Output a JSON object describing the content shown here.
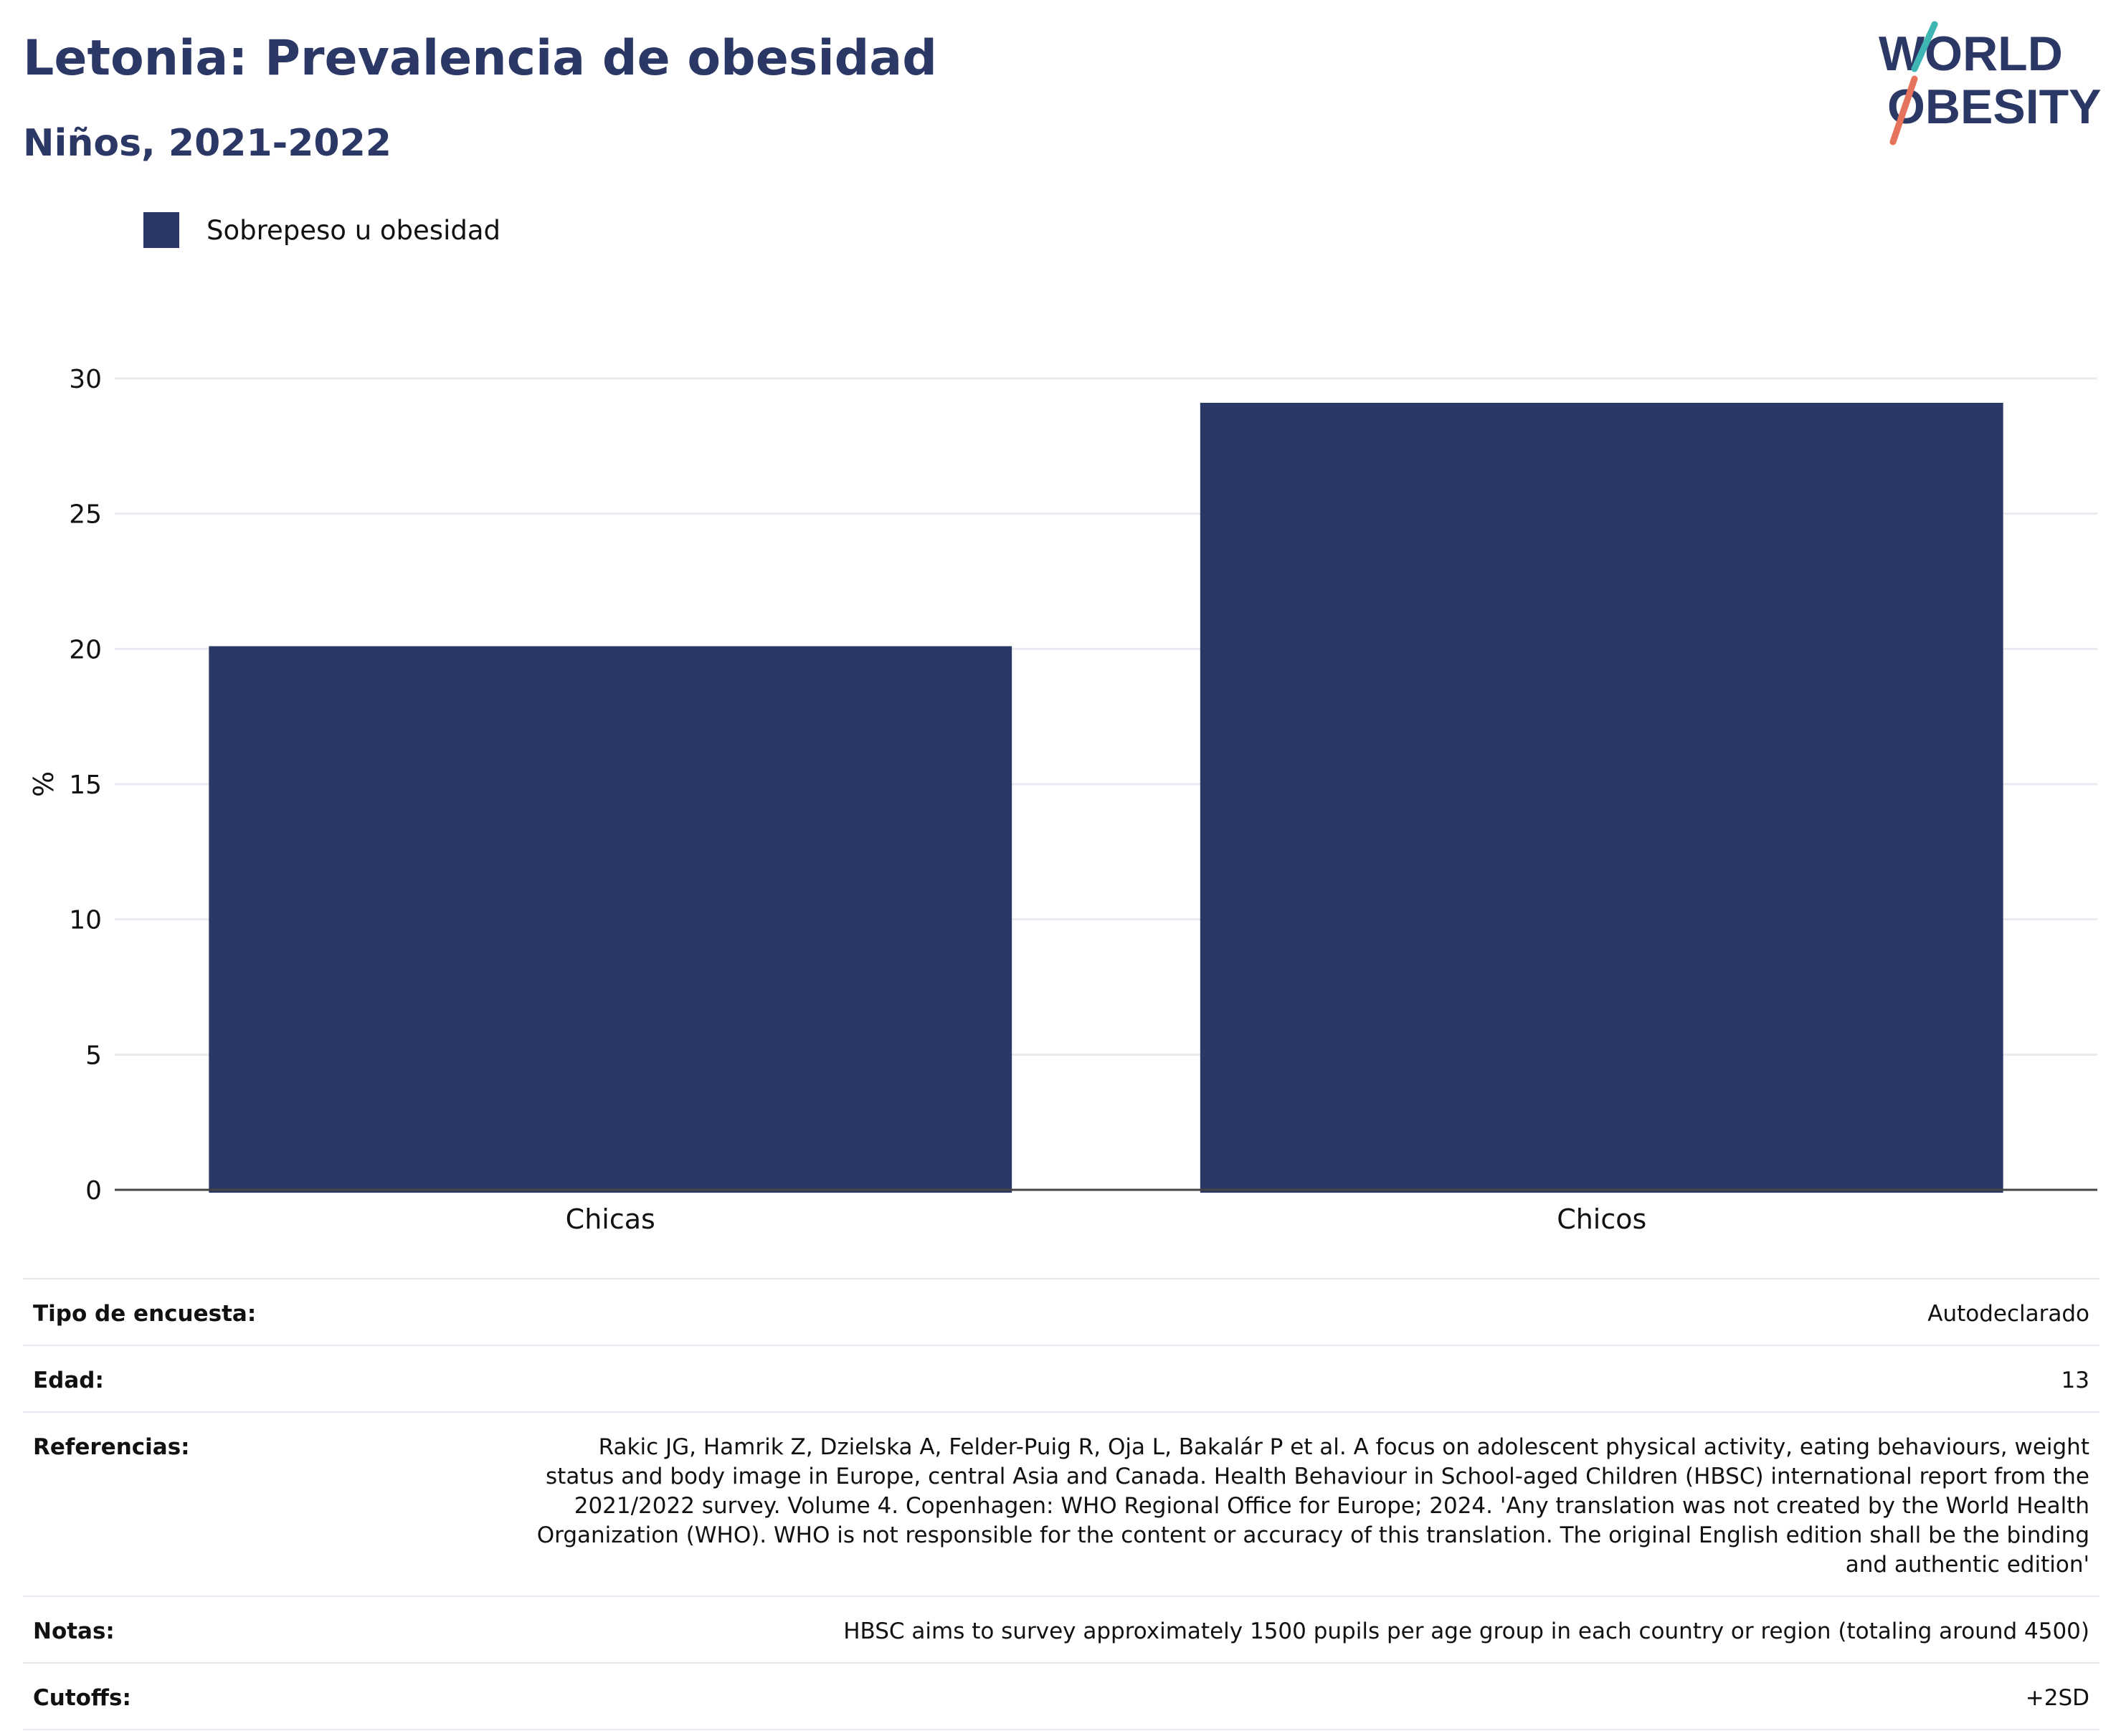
{
  "header": {
    "title": "Letonia: Prevalencia de obesidad",
    "subtitle": "Niños, 2021-2022",
    "logo": {
      "line1": "WORLD",
      "line2": "OBESITY"
    }
  },
  "legend": {
    "items": [
      {
        "label": "Sobrepeso u obesidad",
        "color": "#2b3764"
      }
    ]
  },
  "chart_data": {
    "type": "bar",
    "categories": [
      "Chicas",
      "Chicos"
    ],
    "series": [
      {
        "name": "Sobrepeso u obesidad",
        "values": [
          20.1,
          29.1
        ],
        "color": "#2b3764"
      }
    ],
    "ylabel": "%",
    "xlabel": "",
    "ylim": [
      0,
      30
    ],
    "yticks": [
      0,
      5,
      10,
      15,
      20,
      25,
      30
    ],
    "grid": true,
    "legend_position": "top-left"
  },
  "meta": {
    "rows": [
      {
        "label": "Tipo de encuesta:",
        "value": "Autodeclarado"
      },
      {
        "label": "Edad:",
        "value": "13"
      },
      {
        "label": "Referencias:",
        "value": "Rakic JG, Hamrik Z, Dzielska A, Felder-Puig R, Oja L, Bakalár P et al. A focus on adolescent physical activity, eating behaviours, weight status and body image in Europe, central Asia and Canada. Health Behaviour in School-aged Children (HBSC) international report from the 2021/2022 survey. Volume 4. Copenhagen: WHO Regional Office for Europe; 2024. 'Any translation was not created by the World Health Organization (WHO). WHO is not responsible for the content or accuracy of this translation. The original English edition shall be the binding and authentic edition'"
      },
      {
        "label": "Notas:",
        "value": "HBSC aims to survey approximately 1500 pupils per age group in each country or region (totaling around 4500)"
      },
      {
        "label": "Cutoffs:",
        "value": "+2SD"
      }
    ]
  }
}
